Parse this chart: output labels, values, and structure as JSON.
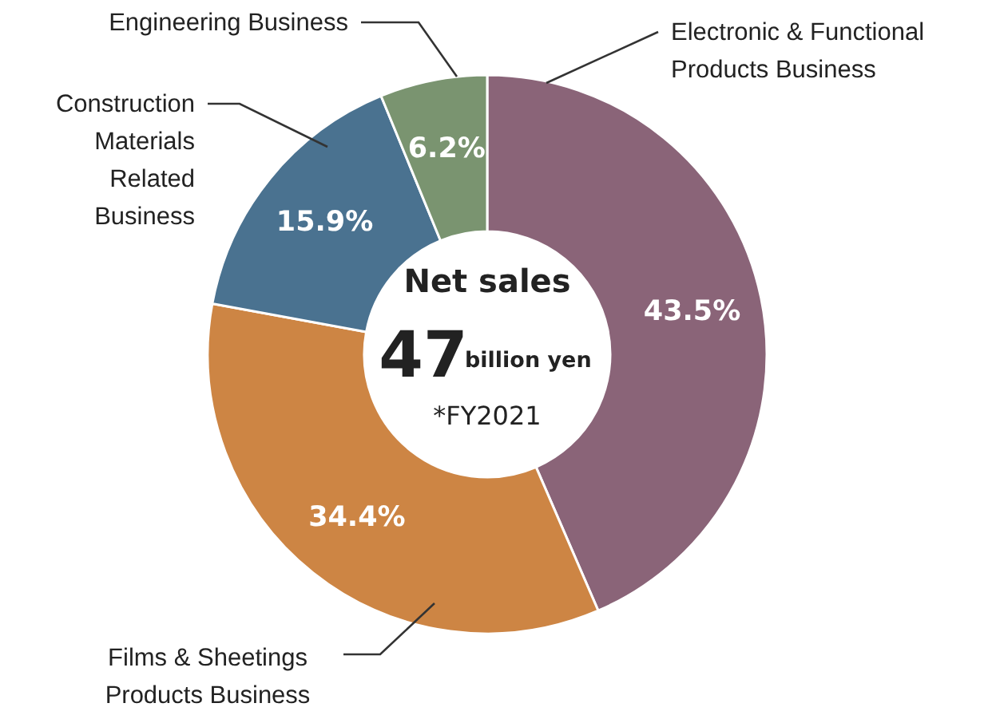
{
  "chart_data": {
    "type": "donut",
    "categories": [
      "Electronic & Functional Products Business",
      "Films & Sheetings Products Business",
      "Construction Materials Related Business",
      "Engineering Business"
    ],
    "values": [
      43.5,
      34.4,
      15.9,
      6.2
    ],
    "colors": [
      "#8a6478",
      "#cd8544",
      "#4a7290",
      "#7a9470"
    ],
    "value_labels": [
      "43.5%",
      "34.4%",
      "15.9%",
      "6.2%"
    ],
    "annotations": [
      "Net sales",
      "47",
      "billion yen",
      "*FY2021"
    ]
  }
}
